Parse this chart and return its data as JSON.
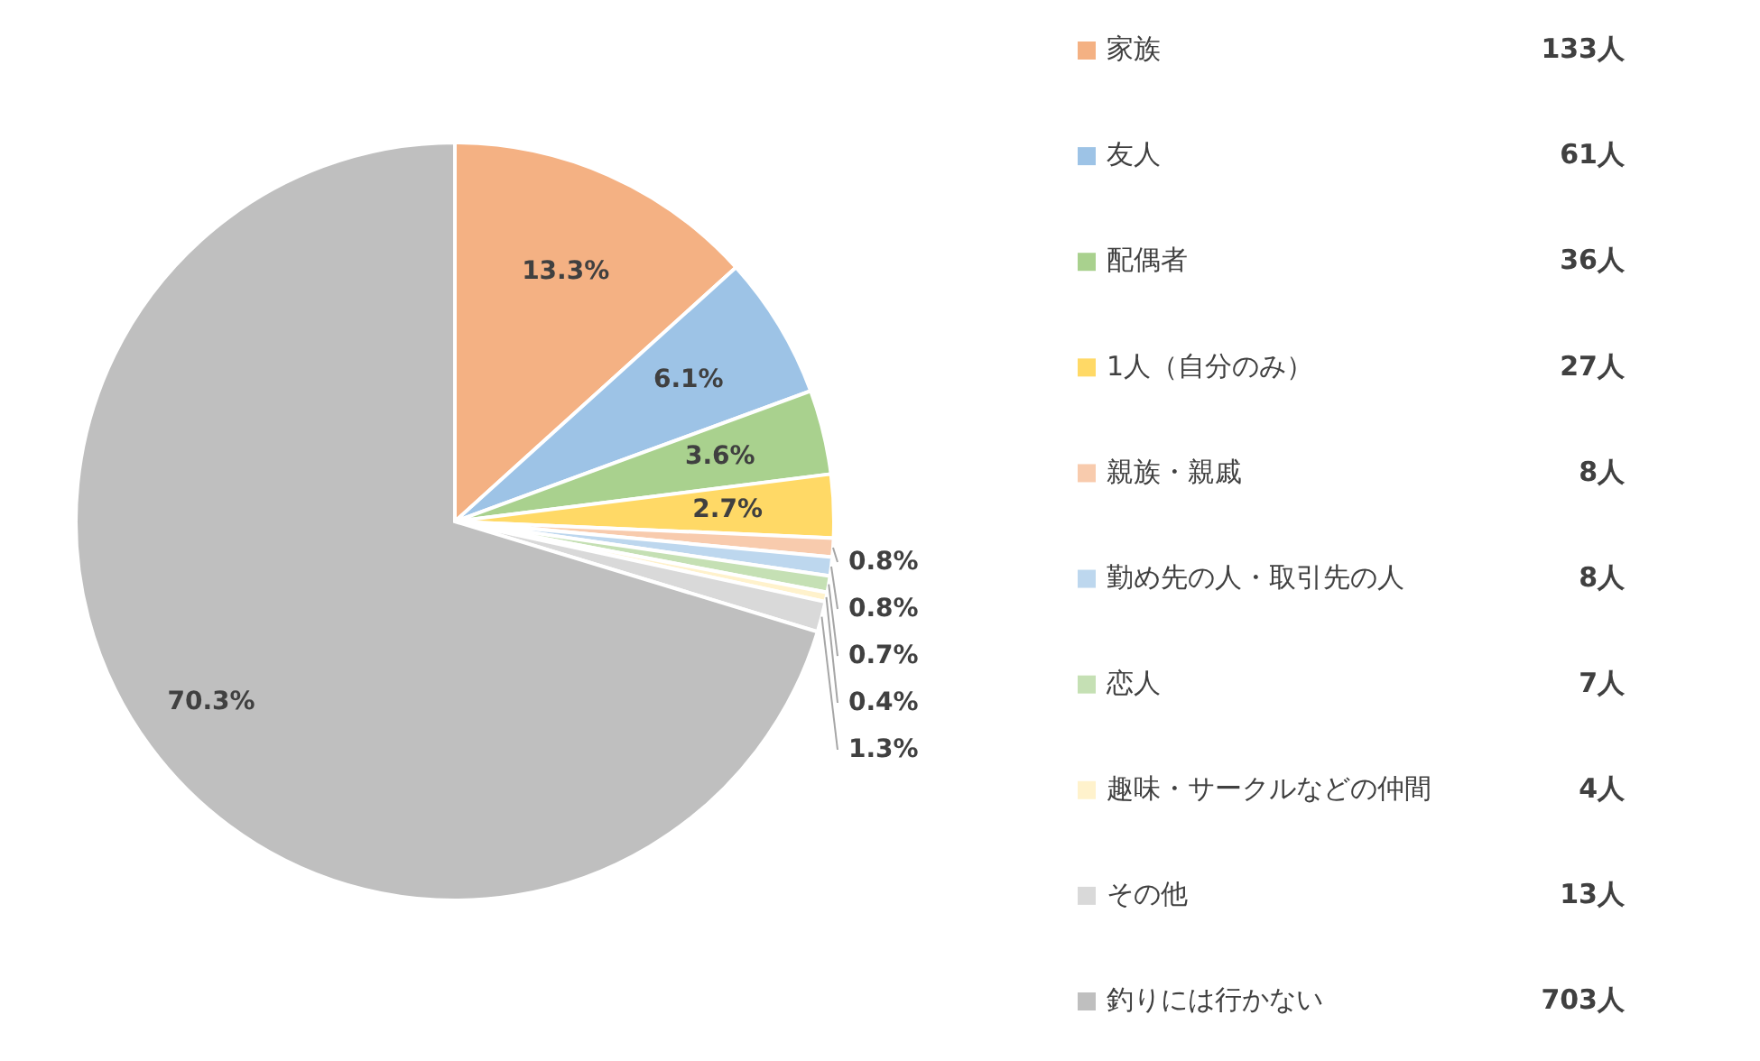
{
  "chart_data": {
    "type": "pie",
    "categories": [
      "家族",
      "友人",
      "配偶者",
      "1人（自分のみ）",
      "親族・親戚",
      "勤め先の人・取引先の人",
      "恋人",
      "趣味・サークルなどの仲間",
      "その他",
      "釣りには行かない"
    ],
    "values": [
      13.3,
      6.1,
      3.6,
      2.7,
      0.8,
      0.8,
      0.7,
      0.4,
      1.3,
      70.3
    ],
    "value_labels": [
      "13.3%",
      "6.1%",
      "3.6%",
      "2.7%",
      "0.8%",
      "0.8%",
      "0.7%",
      "0.4%",
      "1.3%",
      "70.3%"
    ],
    "colors": [
      "#f4b183",
      "#9dc3e6",
      "#a9d18e",
      "#ffd966",
      "#f8cbad",
      "#bdd7ee",
      "#c5e0b4",
      "#fff2cc",
      "#d9d9d9",
      "#bfbfbf"
    ],
    "annotations": [
      "133人",
      "61人",
      "36人",
      "27人",
      "8人",
      "8人",
      "7人",
      "4人",
      "13人",
      "703人"
    ],
    "legend": "right"
  }
}
